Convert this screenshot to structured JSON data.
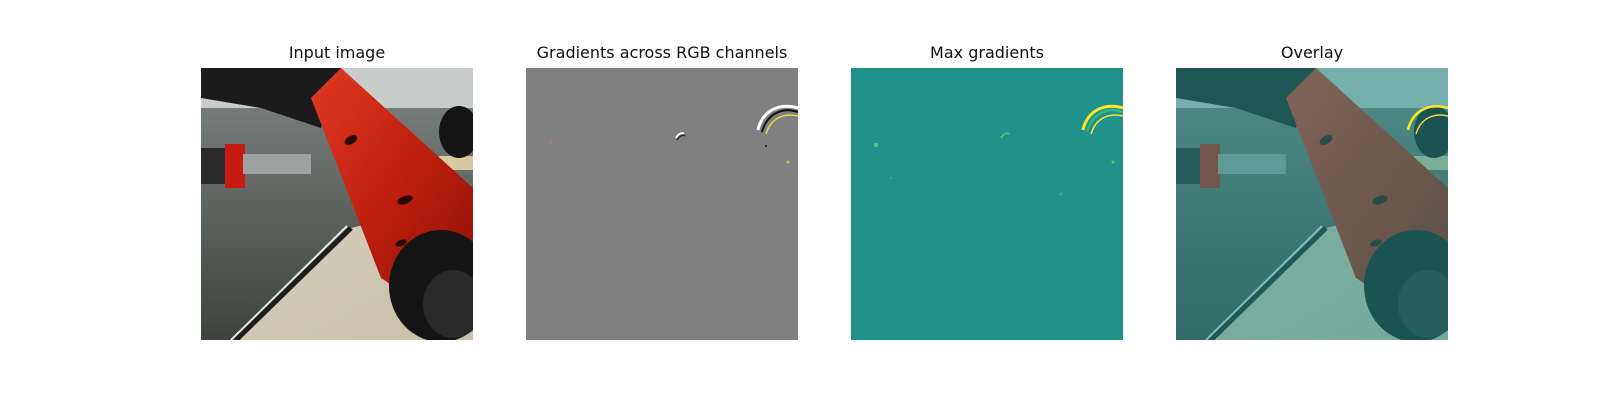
{
  "panels": [
    {
      "title": "Input image"
    },
    {
      "title": "Gradients across RGB channels"
    },
    {
      "title": "Max gradients"
    },
    {
      "title": "Overlay"
    }
  ],
  "colors": {
    "background": "#ffffff",
    "gradient_gray": "#808080",
    "max_gradient_teal": "#21918c",
    "robot_red": "#c1200f",
    "overlay_teal": "#2a7f7b"
  }
}
